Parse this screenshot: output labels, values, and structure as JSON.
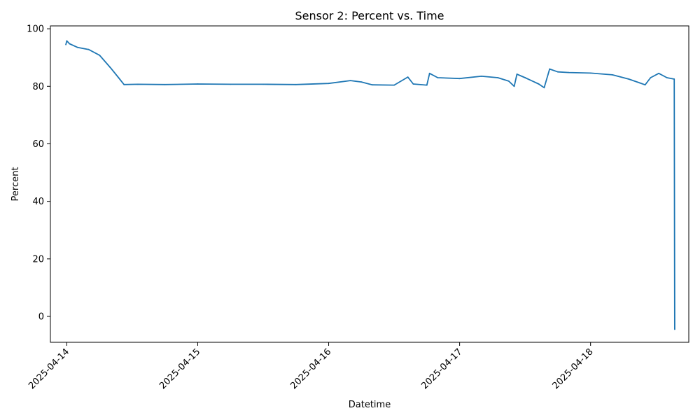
{
  "chart_data": {
    "type": "line",
    "title": "Sensor 2: Percent vs. Time",
    "xlabel": "Datetime",
    "ylabel": "Percent",
    "x_range": [
      "2025-04-13 21:00",
      "2025-04-18 18:00"
    ],
    "ylim": [
      -9,
      101
    ],
    "x_ticks": [
      "2025-04-14",
      "2025-04-15",
      "2025-04-16",
      "2025-04-17",
      "2025-04-18"
    ],
    "y_ticks": [
      0,
      20,
      40,
      60,
      80,
      100
    ],
    "grid": false,
    "legend": "none",
    "series": [
      {
        "color": "#1f77b4",
        "points": [
          [
            "2025-04-13 23:50",
            94.5
          ],
          [
            "2025-04-14 00:00",
            95.8
          ],
          [
            "2025-04-14 00:30",
            94.8
          ],
          [
            "2025-04-14 02:00",
            93.5
          ],
          [
            "2025-04-14 04:00",
            92.8
          ],
          [
            "2025-04-14 06:00",
            90.8
          ],
          [
            "2025-04-14 08:00",
            86.5
          ],
          [
            "2025-04-14 09:30",
            83.0
          ],
          [
            "2025-04-14 10:30",
            80.6
          ],
          [
            "2025-04-14 13:00",
            80.7
          ],
          [
            "2025-04-14 18:00",
            80.6
          ],
          [
            "2025-04-15 00:00",
            80.8
          ],
          [
            "2025-04-15 06:00",
            80.7
          ],
          [
            "2025-04-15 12:00",
            80.7
          ],
          [
            "2025-04-15 18:00",
            80.6
          ],
          [
            "2025-04-16 00:00",
            81.0
          ],
          [
            "2025-04-16 04:00",
            82.0
          ],
          [
            "2025-04-16 06:00",
            81.5
          ],
          [
            "2025-04-16 08:00",
            80.5
          ],
          [
            "2025-04-16 12:00",
            80.4
          ],
          [
            "2025-04-16 14:30",
            83.2
          ],
          [
            "2025-04-16 15:30",
            80.8
          ],
          [
            "2025-04-16 18:00",
            80.4
          ],
          [
            "2025-04-16 18:30",
            84.5
          ],
          [
            "2025-04-16 20:00",
            83.0
          ],
          [
            "2025-04-17 00:00",
            82.7
          ],
          [
            "2025-04-17 04:00",
            83.5
          ],
          [
            "2025-04-17 07:00",
            83.0
          ],
          [
            "2025-04-17 09:00",
            81.8
          ],
          [
            "2025-04-17 10:00",
            80.0
          ],
          [
            "2025-04-17 10:30",
            84.2
          ],
          [
            "2025-04-17 12:00",
            83.0
          ],
          [
            "2025-04-17 14:30",
            80.8
          ],
          [
            "2025-04-17 15:30",
            79.5
          ],
          [
            "2025-04-17 16:30",
            86.0
          ],
          [
            "2025-04-17 18:00",
            85.0
          ],
          [
            "2025-04-17 20:00",
            84.8
          ],
          [
            "2025-04-18 00:00",
            84.6
          ],
          [
            "2025-04-18 04:00",
            84.0
          ],
          [
            "2025-04-18 07:00",
            82.5
          ],
          [
            "2025-04-18 09:00",
            81.2
          ],
          [
            "2025-04-18 10:00",
            80.5
          ],
          [
            "2025-04-18 11:00",
            83.0
          ],
          [
            "2025-04-18 12:30",
            84.5
          ],
          [
            "2025-04-18 14:00",
            83.0
          ],
          [
            "2025-04-18 15:20",
            82.5
          ],
          [
            "2025-04-18 15:25",
            -4.5
          ]
        ]
      }
    ]
  }
}
